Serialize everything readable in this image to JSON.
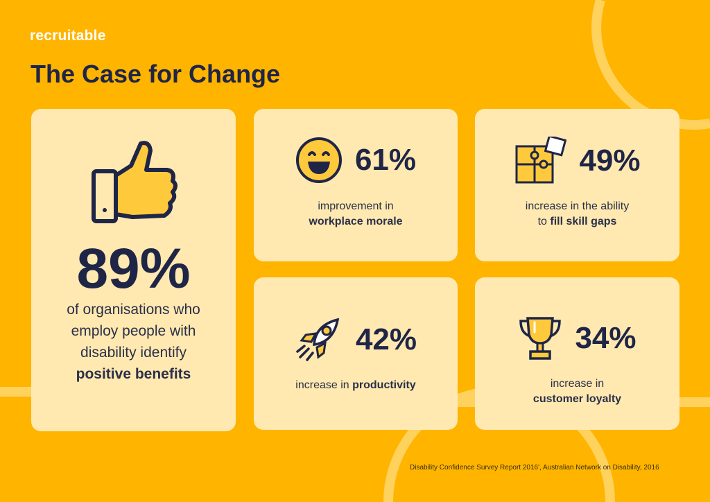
{
  "brand": {
    "logo": "recruitable"
  },
  "title": "The Case for Change",
  "colors": {
    "background": "#FFB400",
    "card": "#FFE9B0",
    "text": "#1F2547",
    "icon_fill": "#FFC93C"
  },
  "main_stat": {
    "icon": "thumbs-up-icon",
    "value": "89%",
    "line1": "of organisations who",
    "line2": "employ people with",
    "line3": "disability identify",
    "bold": "positive benefits"
  },
  "stats": [
    {
      "icon": "smiley-face-icon",
      "value": "61%",
      "text": "improvement in",
      "bold": "workplace morale"
    },
    {
      "icon": "puzzle-icon",
      "value": "49%",
      "text": "increase in the ability",
      "text2": "to",
      "bold": "fill skill gaps"
    },
    {
      "icon": "rocket-icon",
      "value": "42%",
      "text": "increase in",
      "bold": "productivity"
    },
    {
      "icon": "trophy-icon",
      "value": "34%",
      "text": "increase in",
      "bold": "customer loyalty"
    }
  ],
  "source": "Disability Confidence Survey Report 2016', Australian Network on Disability, 2016"
}
